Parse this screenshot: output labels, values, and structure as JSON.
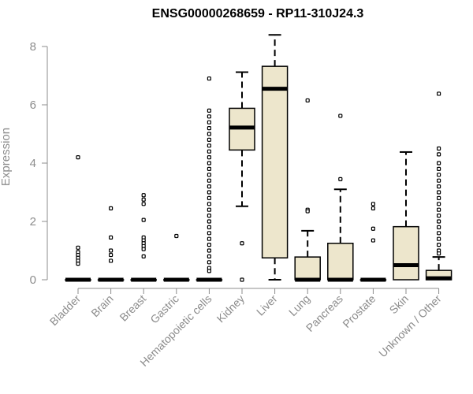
{
  "chart_data": {
    "type": "boxplot",
    "title": "ENSG00000268659 - RP11-310J24.3",
    "xlabel": "",
    "ylabel": "Expression",
    "ylim": [
      0,
      8.4
    ],
    "yticks": [
      0,
      2,
      4,
      6,
      8
    ],
    "colors": {
      "box_fill": "#ede6cc",
      "stroke": "#000000",
      "axis_text": "#8c8c8c"
    },
    "categories": [
      "Bladder",
      "Brain",
      "Breast",
      "Gastric",
      "Hematopoietic cells",
      "Kidney",
      "Liver",
      "Lung",
      "Pancreas",
      "Prostate",
      "Skin",
      "Unknown / Other"
    ],
    "boxes": [
      {
        "q1": 0,
        "median": 0,
        "q3": 0,
        "whisker_low": 0,
        "whisker_high": 0,
        "outliers": [
          4.2,
          1.1,
          0.95,
          0.85,
          0.75,
          0.65,
          0.55
        ]
      },
      {
        "q1": 0,
        "median": 0,
        "q3": 0,
        "whisker_low": 0,
        "whisker_high": 0,
        "outliers": [
          2.45,
          1.45,
          1.0,
          0.85,
          0.65
        ]
      },
      {
        "q1": 0,
        "median": 0,
        "q3": 0,
        "whisker_low": 0,
        "whisker_high": 0,
        "outliers": [
          2.9,
          2.75,
          2.6,
          2.05,
          1.45,
          1.35,
          1.25,
          1.15,
          1.05,
          0.8
        ]
      },
      {
        "q1": 0,
        "median": 0,
        "q3": 0,
        "whisker_low": 0,
        "whisker_high": 0,
        "outliers": [
          1.5
        ]
      },
      {
        "q1": 0,
        "median": 0,
        "q3": 0,
        "whisker_low": 0,
        "whisker_high": 0,
        "outliers": [
          6.9,
          5.8,
          5.6,
          5.4,
          5.2,
          5.0,
          4.8,
          4.6,
          4.4,
          4.2,
          4.0,
          3.8,
          3.6,
          3.4,
          3.2,
          3.0,
          2.8,
          2.6,
          2.4,
          2.2,
          2.0,
          1.8,
          1.6,
          1.4,
          1.2,
          1.0,
          0.8,
          0.6,
          0.4,
          0.3
        ]
      },
      {
        "q1": 4.45,
        "median": 5.22,
        "q3": 5.88,
        "whisker_low": 2.52,
        "whisker_high": 7.12,
        "outliers": [
          1.25,
          0
        ]
      },
      {
        "q1": 0.75,
        "median": 6.55,
        "q3": 7.32,
        "whisker_low": 0,
        "whisker_high": 8.4,
        "outliers": []
      },
      {
        "q1": 0,
        "median": 0,
        "q3": 0.78,
        "whisker_low": 0,
        "whisker_high": 1.68,
        "outliers": [
          6.15,
          2.4,
          2.35
        ]
      },
      {
        "q1": 0,
        "median": 0,
        "q3": 1.25,
        "whisker_low": 0,
        "whisker_high": 3.1,
        "outliers": [
          5.62,
          3.45
        ]
      },
      {
        "q1": 0,
        "median": 0,
        "q3": 0,
        "whisker_low": 0,
        "whisker_high": 0,
        "outliers": [
          2.6,
          2.45,
          1.75,
          1.35
        ]
      },
      {
        "q1": 0,
        "median": 0.5,
        "q3": 1.82,
        "whisker_low": 0,
        "whisker_high": 4.38,
        "outliers": []
      },
      {
        "q1": 0,
        "median": 0.05,
        "q3": 0.32,
        "whisker_low": 0,
        "whisker_high": 0.78,
        "outliers": [
          6.38,
          4.5,
          4.3,
          4.0,
          3.8,
          3.6,
          3.4,
          3.2,
          3.0,
          2.8,
          2.6,
          2.4,
          2.2,
          2.0,
          1.8,
          1.6,
          1.4,
          1.2,
          1.0,
          0.9
        ]
      }
    ]
  }
}
